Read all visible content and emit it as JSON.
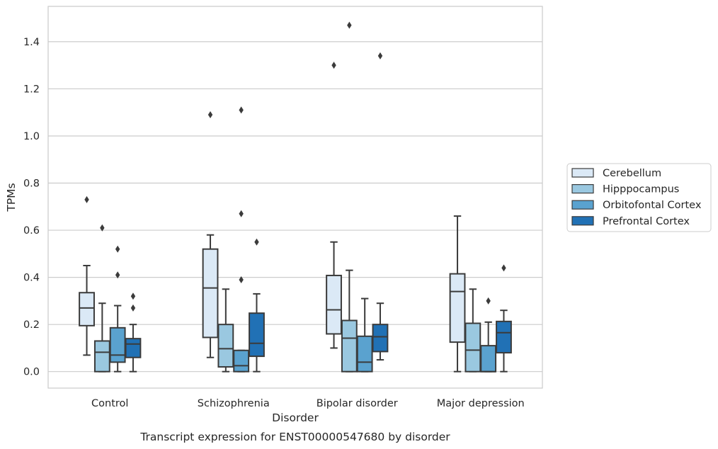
{
  "chart_data": {
    "type": "box",
    "caption": "Transcript expression for ENST00000547680 by disorder",
    "xlabel": "Disorder",
    "ylabel": "TPMs",
    "categories": [
      "Control",
      "Schizophrenia",
      "Bipolar disorder",
      "Major depression"
    ],
    "ylim": [
      -0.07,
      1.55
    ],
    "yticks": [
      0.0,
      0.2,
      0.4,
      0.6,
      0.8,
      1.0,
      1.2,
      1.4
    ],
    "ytick_labels": [
      "0.0",
      "0.2",
      "0.4",
      "0.6",
      "0.8",
      "1.0",
      "1.2",
      "1.4"
    ],
    "grid": true,
    "legend_position": "right",
    "series": [
      {
        "name": "Cerebellum",
        "color": "#dbe9f6",
        "boxes": [
          {
            "whislo": 0.07,
            "q1": 0.195,
            "med": 0.27,
            "q3": 0.335,
            "whishi": 0.45,
            "fliers": [
              0.73
            ]
          },
          {
            "whislo": 0.06,
            "q1": 0.145,
            "med": 0.355,
            "q3": 0.52,
            "whishi": 0.58,
            "fliers": [
              1.09
            ]
          },
          {
            "whislo": 0.1,
            "q1": 0.16,
            "med": 0.262,
            "q3": 0.408,
            "whishi": 0.55,
            "fliers": [
              1.3
            ]
          },
          {
            "whislo": 0.0,
            "q1": 0.125,
            "med": 0.34,
            "q3": 0.415,
            "whishi": 0.66,
            "fliers": []
          }
        ]
      },
      {
        "name": "Hipppocampus",
        "color": "#9ac8e0",
        "boxes": [
          {
            "whislo": 0.0,
            "q1": 0.0,
            "med": 0.082,
            "q3": 0.13,
            "whishi": 0.29,
            "fliers": [
              0.61
            ]
          },
          {
            "whislo": 0.0,
            "q1": 0.02,
            "med": 0.097,
            "q3": 0.2,
            "whishi": 0.35,
            "fliers": []
          },
          {
            "whislo": 0.0,
            "q1": 0.0,
            "med": 0.142,
            "q3": 0.217,
            "whishi": 0.43,
            "fliers": [
              1.47
            ]
          },
          {
            "whislo": 0.0,
            "q1": 0.0,
            "med": 0.091,
            "q3": 0.205,
            "whishi": 0.35,
            "fliers": []
          }
        ]
      },
      {
        "name": "Orbitofontal Cortex",
        "color": "#5aa2cf",
        "boxes": [
          {
            "whislo": 0.0,
            "q1": 0.04,
            "med": 0.07,
            "q3": 0.186,
            "whishi": 0.28,
            "fliers": [
              0.41,
              0.52
            ]
          },
          {
            "whislo": 0.0,
            "q1": 0.0,
            "med": 0.025,
            "q3": 0.09,
            "whishi": 0.09,
            "fliers": [
              0.39,
              0.67,
              1.11
            ]
          },
          {
            "whislo": 0.0,
            "q1": 0.0,
            "med": 0.04,
            "q3": 0.15,
            "whishi": 0.31,
            "fliers": []
          },
          {
            "whislo": 0.0,
            "q1": 0.0,
            "med": 0.0,
            "q3": 0.11,
            "whishi": 0.21,
            "fliers": [
              0.3
            ]
          }
        ]
      },
      {
        "name": "Prefrontal Cortex",
        "color": "#2171b5",
        "boxes": [
          {
            "whislo": 0.0,
            "q1": 0.06,
            "med": 0.117,
            "q3": 0.14,
            "whishi": 0.2,
            "fliers": [
              0.27,
              0.32
            ]
          },
          {
            "whislo": 0.0,
            "q1": 0.065,
            "med": 0.12,
            "q3": 0.248,
            "whishi": 0.33,
            "fliers": [
              0.55
            ]
          },
          {
            "whislo": 0.05,
            "q1": 0.085,
            "med": 0.148,
            "q3": 0.2,
            "whishi": 0.29,
            "fliers": [
              1.34
            ]
          },
          {
            "whislo": 0.0,
            "q1": 0.08,
            "med": 0.165,
            "q3": 0.213,
            "whishi": 0.26,
            "fliers": [
              0.44
            ]
          }
        ]
      }
    ]
  }
}
